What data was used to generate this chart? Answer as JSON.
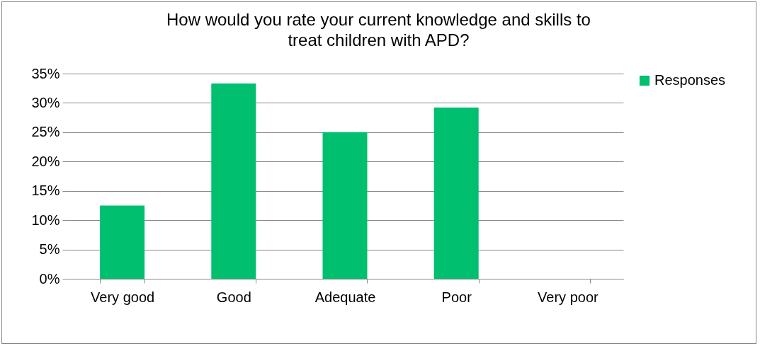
{
  "chart_data": {
    "type": "bar",
    "title": "How would you rate your current knowledge and skills to treat children with APD?",
    "categories": [
      "Very good",
      "Good",
      "Adequate",
      "Poor",
      "Very poor"
    ],
    "series": [
      {
        "name": "Responses",
        "color": "#00bf6f",
        "values": [
          12.5,
          33.3,
          25,
          29.2,
          0
        ]
      }
    ],
    "ylim": [
      0,
      35
    ],
    "yticks": [
      {
        "value": 0,
        "label": "0%"
      },
      {
        "value": 5,
        "label": "5%"
      },
      {
        "value": 10,
        "label": "10%"
      },
      {
        "value": 15,
        "label": "15%"
      },
      {
        "value": 20,
        "label": "20%"
      },
      {
        "value": 25,
        "label": "25%"
      },
      {
        "value": 30,
        "label": "30%"
      },
      {
        "value": 35,
        "label": "35%"
      }
    ],
    "grid": "y",
    "legend": "right"
  }
}
